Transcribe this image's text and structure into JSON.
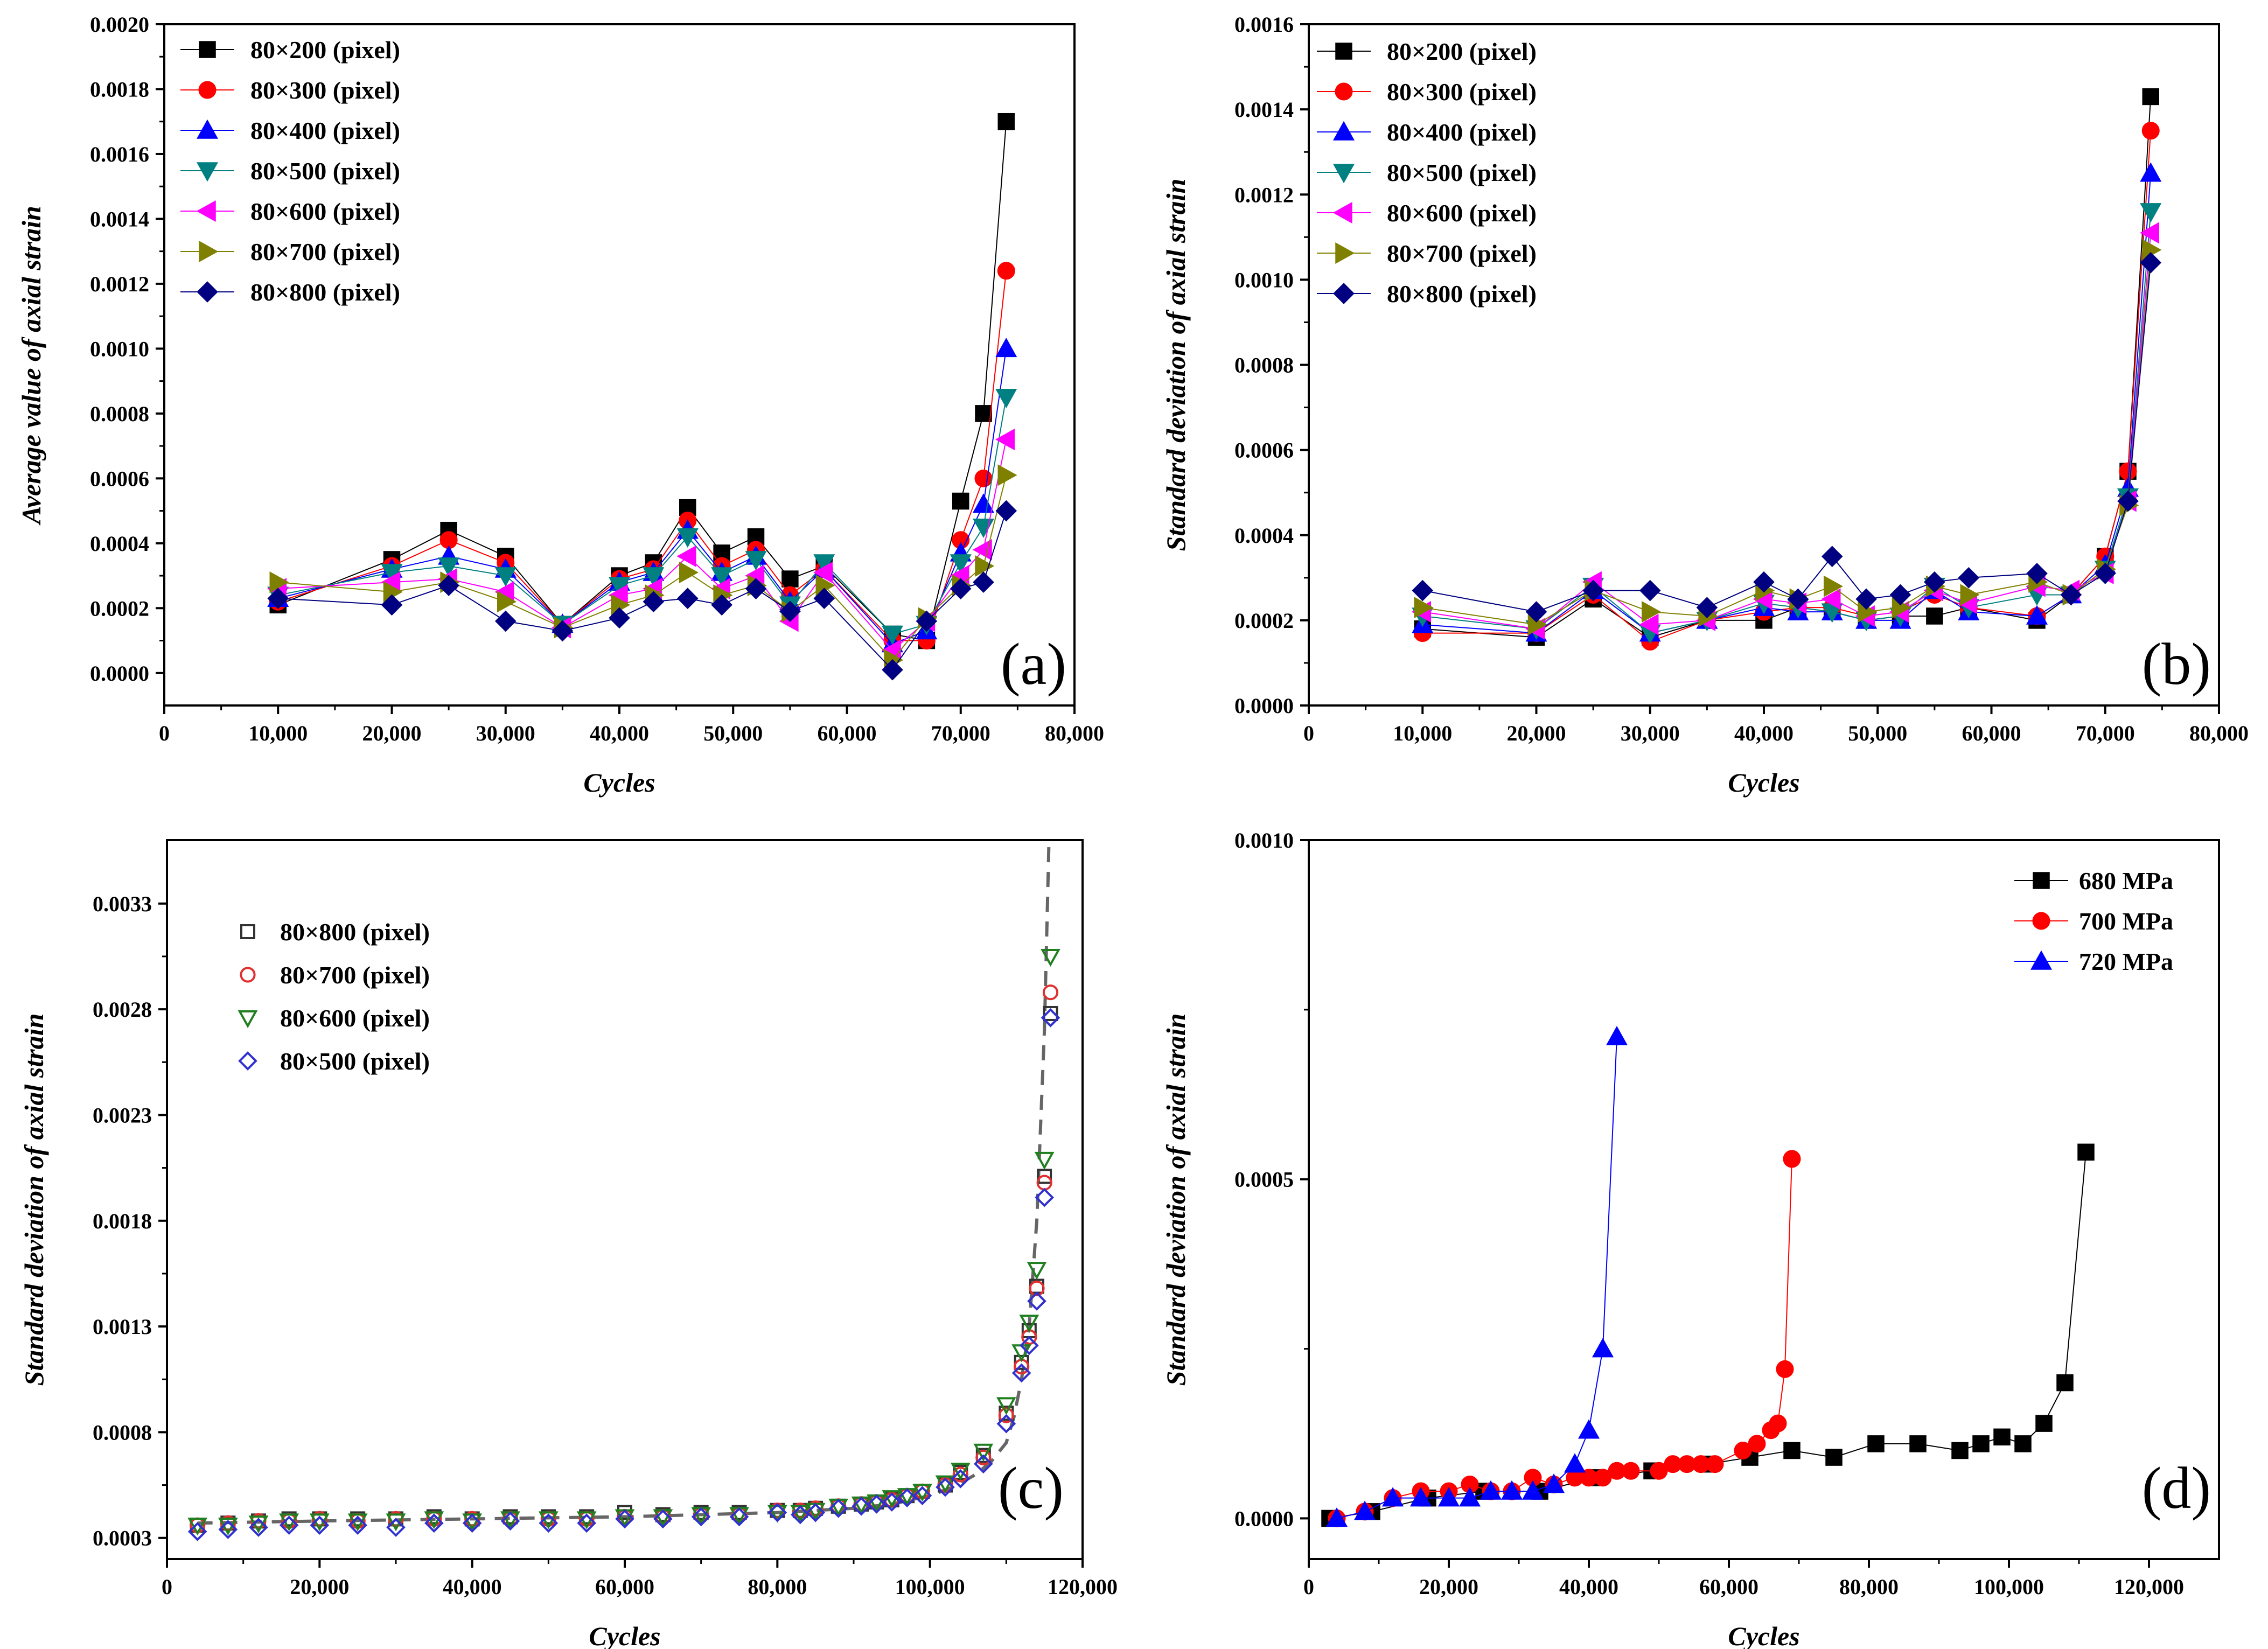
{
  "chart_data": [
    {
      "type": "line",
      "panel_label": "(a)",
      "xlabel": "Cycles",
      "ylabel": "Average value of axial strain",
      "xlim": [
        0,
        80000
      ],
      "ylim": [
        -0.0001,
        0.002
      ],
      "x_ticks": [
        0,
        10000,
        20000,
        30000,
        40000,
        50000,
        60000,
        70000,
        80000
      ],
      "x_tick_labels": [
        "0",
        "10,000",
        "20,000",
        "30,000",
        "40,000",
        "50,000",
        "60,000",
        "70,000",
        "80,000"
      ],
      "y_ticks": [
        0,
        0.0002,
        0.0004,
        0.0006,
        0.0008,
        0.001,
        0.0012,
        0.0014,
        0.0016,
        0.0018,
        0.002
      ],
      "y_tick_labels": [
        "0.0000",
        "0.0002",
        "0.0004",
        "0.0006",
        "0.0008",
        "0.0010",
        "0.0012",
        "0.0014",
        "0.0016",
        "0.0018",
        "0.0020"
      ],
      "legend_position": "top-left",
      "x": [
        10000,
        20000,
        25000,
        30000,
        35000,
        40000,
        43000,
        46000,
        49000,
        52000,
        55000,
        58000,
        64000,
        67000,
        70000,
        72000,
        74000
      ],
      "series": [
        {
          "name": "80×200 (pixel)",
          "color": "#000000",
          "marker": "square",
          "values": [
            0.00021,
            0.00035,
            0.00044,
            0.00036,
            0.00015,
            0.0003,
            0.00034,
            0.00051,
            0.00037,
            0.00042,
            0.00029,
            0.00033,
            0.00012,
            0.0001,
            0.00053,
            0.0008,
            0.0017
          ]
        },
        {
          "name": "80×300 (pixel)",
          "color": "#ff0000",
          "marker": "circle",
          "values": [
            0.00022,
            0.00033,
            0.00041,
            0.00034,
            0.00015,
            0.00029,
            0.00032,
            0.00047,
            0.00033,
            0.00038,
            0.00024,
            0.00032,
            0.0001,
            0.0001,
            0.00041,
            0.0006,
            0.00124
          ]
        },
        {
          "name": "80×400 (pixel)",
          "color": "#0000ff",
          "marker": "triangle-up",
          "values": [
            0.00023,
            0.00032,
            0.00036,
            0.00032,
            0.00015,
            0.00028,
            0.00031,
            0.00044,
            0.00031,
            0.00036,
            0.00022,
            0.00032,
            9e-05,
            0.00013,
            0.00037,
            0.00052,
            0.001
          ]
        },
        {
          "name": "80×500 (pixel)",
          "color": "#008080",
          "marker": "triangle-down",
          "values": [
            0.00024,
            0.00031,
            0.00033,
            0.0003,
            0.00015,
            0.00027,
            0.0003,
            0.00042,
            0.0003,
            0.00035,
            0.00021,
            0.00034,
            0.00012,
            0.00015,
            0.00034,
            0.00045,
            0.00085
          ]
        },
        {
          "name": "80×600 (pixel)",
          "color": "#ff00ff",
          "marker": "triangle-left",
          "values": [
            0.00026,
            0.00028,
            0.00029,
            0.00025,
            0.00014,
            0.00024,
            0.00026,
            0.00036,
            0.00026,
            0.0003,
            0.00016,
            0.00031,
            7e-05,
            0.00016,
            0.0003,
            0.00038,
            0.00072
          ]
        },
        {
          "name": "80×700 (pixel)",
          "color": "#808000",
          "marker": "triangle-right",
          "values": [
            0.00028,
            0.00025,
            0.00028,
            0.00022,
            0.00014,
            0.00021,
            0.00024,
            0.00031,
            0.00024,
            0.00027,
            0.00019,
            0.00027,
            4e-05,
            0.00017,
            0.00027,
            0.00033,
            0.00061
          ]
        },
        {
          "name": "80×800 (pixel)",
          "color": "#000080",
          "marker": "diamond",
          "values": [
            0.00023,
            0.00021,
            0.00027,
            0.00016,
            0.00013,
            0.00017,
            0.00022,
            0.00023,
            0.00021,
            0.00026,
            0.00019,
            0.00023,
            1e-05,
            0.00016,
            0.00026,
            0.00028,
            0.0005
          ]
        }
      ]
    },
    {
      "type": "line",
      "panel_label": "(b)",
      "xlabel": "Cycles",
      "ylabel": "Standard deviation of axial strain",
      "xlim": [
        0,
        80000
      ],
      "ylim": [
        0,
        0.0016
      ],
      "x_ticks": [
        0,
        10000,
        20000,
        30000,
        40000,
        50000,
        60000,
        70000,
        80000
      ],
      "x_tick_labels": [
        "0",
        "10,000",
        "20,000",
        "30,000",
        "40,000",
        "50,000",
        "60,000",
        "70,000",
        "80,000"
      ],
      "y_ticks": [
        0,
        0.0002,
        0.0004,
        0.0006,
        0.0008,
        0.001,
        0.0012,
        0.0014,
        0.0016
      ],
      "y_tick_labels": [
        "0.0000",
        "0.0002",
        "0.0004",
        "0.0006",
        "0.0008",
        "0.0010",
        "0.0012",
        "0.0014",
        "0.0016"
      ],
      "legend_position": "top-left",
      "x": [
        10000,
        20000,
        25000,
        30000,
        35000,
        40000,
        43000,
        46000,
        49000,
        52000,
        55000,
        58000,
        64000,
        67000,
        70000,
        72000,
        74000
      ],
      "series": [
        {
          "name": "80×200 (pixel)",
          "color": "#000000",
          "marker": "square",
          "values": [
            0.00018,
            0.00016,
            0.00025,
            0.00016,
            0.0002,
            0.0002,
            0.00023,
            0.00022,
            0.0002,
            0.00021,
            0.00021,
            0.00023,
            0.0002,
            0.00026,
            0.00035,
            0.00055,
            0.00143
          ]
        },
        {
          "name": "80×300 (pixel)",
          "color": "#ff0000",
          "marker": "circle",
          "values": [
            0.00017,
            0.00017,
            0.00026,
            0.00015,
            0.0002,
            0.00022,
            0.00023,
            0.00023,
            0.00021,
            0.00022,
            0.00026,
            0.00023,
            0.00021,
            0.00026,
            0.00035,
            0.00055,
            0.00135
          ]
        },
        {
          "name": "80×400 (pixel)",
          "color": "#0000ff",
          "marker": "triangle-up",
          "values": [
            0.00019,
            0.00017,
            0.00027,
            0.00017,
            0.0002,
            0.00023,
            0.00022,
            0.00022,
            0.0002,
            0.0002,
            0.00027,
            0.00022,
            0.00021,
            0.00026,
            0.00033,
            0.00051,
            0.00125
          ]
        },
        {
          "name": "80×500 (pixel)",
          "color": "#008080",
          "marker": "triangle-down",
          "values": [
            0.00021,
            0.00018,
            0.00028,
            0.00017,
            0.0002,
            0.00024,
            0.00023,
            0.00022,
            0.0002,
            0.00021,
            0.00028,
            0.00023,
            0.00026,
            0.00026,
            0.00032,
            0.00049,
            0.00116
          ]
        },
        {
          "name": "80×600 (pixel)",
          "color": "#ff00ff",
          "marker": "triangle-left",
          "values": [
            0.00022,
            0.00018,
            0.00029,
            0.00019,
            0.0002,
            0.00025,
            0.00024,
            0.00025,
            0.00021,
            0.00022,
            0.00027,
            0.00024,
            0.00028,
            0.00027,
            0.00031,
            0.00048,
            0.00111
          ]
        },
        {
          "name": "80×700 (pixel)",
          "color": "#808000",
          "marker": "triangle-right",
          "values": [
            0.00023,
            0.00019,
            0.00027,
            0.00022,
            0.00021,
            0.00027,
            0.00025,
            0.00028,
            0.00022,
            0.00023,
            0.00028,
            0.00026,
            0.00029,
            0.00026,
            0.00032,
            0.00047,
            0.00107
          ]
        },
        {
          "name": "80×800 (pixel)",
          "color": "#000080",
          "marker": "diamond",
          "values": [
            0.00027,
            0.00022,
            0.00027,
            0.00027,
            0.00023,
            0.00029,
            0.00025,
            0.00035,
            0.00025,
            0.00026,
            0.00029,
            0.0003,
            0.00031,
            0.00026,
            0.00031,
            0.00048,
            0.00104
          ]
        }
      ]
    },
    {
      "type": "scatter",
      "panel_label": "(c)",
      "xlabel": "Cycles",
      "ylabel": "Standard deviation of axial strain",
      "xlim": [
        0,
        120000
      ],
      "ylim": [
        0.0002,
        0.0036
      ],
      "x_ticks": [
        0,
        20000,
        40000,
        60000,
        80000,
        100000,
        120000
      ],
      "x_tick_labels": [
        "0",
        "20,000",
        "40,000",
        "60,000",
        "80,000",
        "100,000",
        "120,000"
      ],
      "y_ticks": [
        0.0003,
        0.0008,
        0.0013,
        0.0018,
        0.0023,
        0.0028,
        0.0033
      ],
      "y_tick_labels": [
        "0.0003",
        "0.0008",
        "0.0013",
        "0.0018",
        "0.0023",
        "0.0028",
        "0.0033"
      ],
      "legend_position": "top-left",
      "fit_curve": {
        "style": "dashed",
        "color": "#666666",
        "x": [
          4000,
          20000,
          40000,
          60000,
          80000,
          90000,
          95000,
          100000,
          103000,
          106000,
          108000,
          110000,
          111000,
          112000,
          113000,
          114000,
          115000,
          115600
        ],
        "y": [
          0.00037,
          0.00038,
          0.00039,
          0.0004,
          0.00042,
          0.00044,
          0.00046,
          0.0005,
          0.00054,
          0.0006,
          0.00066,
          0.00075,
          0.00087,
          0.00105,
          0.0013,
          0.0018,
          0.0027,
          0.0036
        ]
      },
      "x": [
        4000,
        8000,
        12000,
        16000,
        20000,
        25000,
        30000,
        35000,
        40000,
        45000,
        50000,
        55000,
        60000,
        65000,
        70000,
        75000,
        80000,
        83000,
        85000,
        88000,
        91000,
        93000,
        95000,
        97000,
        99000,
        102000,
        104000,
        107000,
        110000,
        112000,
        113000,
        114000,
        115000,
        115800
      ],
      "series": [
        {
          "name": "80×800 (pixel)",
          "color": "#333333",
          "marker": "square-open",
          "values": [
            0.00036,
            0.00037,
            0.00038,
            0.00039,
            0.00039,
            0.00039,
            0.00039,
            0.0004,
            0.00039,
            0.0004,
            0.0004,
            0.0004,
            0.00042,
            0.00041,
            0.00042,
            0.00042,
            0.00043,
            0.00043,
            0.00044,
            0.00045,
            0.00046,
            0.00047,
            0.00048,
            0.0005,
            0.00052,
            0.00055,
            0.00061,
            0.00069,
            0.00089,
            0.00113,
            0.00128,
            0.00149,
            0.00201,
            0.00278
          ]
        },
        {
          "name": "80×700 (pixel)",
          "color": "#e03030",
          "marker": "circle-open",
          "values": [
            0.00036,
            0.00037,
            0.00038,
            0.00038,
            0.00039,
            0.00038,
            0.00039,
            0.00039,
            0.00039,
            0.00039,
            0.00039,
            0.00039,
            0.0004,
            0.0004,
            0.00041,
            0.00041,
            0.00043,
            0.00043,
            0.00044,
            0.00045,
            0.00046,
            0.00047,
            0.00048,
            0.0005,
            0.00052,
            0.00055,
            0.0006,
            0.00068,
            0.00088,
            0.00111,
            0.00125,
            0.00148,
            0.00198,
            0.00288
          ]
        },
        {
          "name": "80×600 (pixel)",
          "color": "#208020",
          "marker": "triangle-down-open",
          "values": [
            0.00036,
            0.00036,
            0.00037,
            0.00038,
            0.00038,
            0.00038,
            0.00038,
            0.00039,
            0.00038,
            0.00039,
            0.00039,
            0.00039,
            0.0004,
            0.0004,
            0.00041,
            0.00041,
            0.00042,
            0.00042,
            0.00043,
            0.00045,
            0.00046,
            0.00047,
            0.00049,
            0.0005,
            0.00052,
            0.00056,
            0.00062,
            0.00071,
            0.00093,
            0.00118,
            0.00132,
            0.00157,
            0.00209,
            0.00305
          ]
        },
        {
          "name": "80×500 (pixel)",
          "color": "#3030d0",
          "marker": "diamond-open",
          "values": [
            0.00033,
            0.00034,
            0.00035,
            0.00036,
            0.00036,
            0.00036,
            0.00035,
            0.00037,
            0.00037,
            0.00038,
            0.00037,
            0.00037,
            0.00039,
            0.00039,
            0.0004,
            0.0004,
            0.00042,
            0.00041,
            0.00042,
            0.00044,
            0.00045,
            0.00046,
            0.00047,
            0.00049,
            0.0005,
            0.00054,
            0.00058,
            0.00065,
            0.00084,
            0.00108,
            0.00121,
            0.00142,
            0.00191,
            0.00276
          ]
        }
      ]
    },
    {
      "type": "line",
      "panel_label": "(d)",
      "xlabel": "Cycles",
      "ylabel": "Standard deviation of axial strain",
      "xlim": [
        0,
        130000
      ],
      "ylim": [
        -6e-05,
        0.001
      ],
      "x_ticks": [
        0,
        20000,
        40000,
        60000,
        80000,
        100000,
        120000
      ],
      "x_tick_labels": [
        "0",
        "20,000",
        "40,000",
        "60,000",
        "80,000",
        "100,000",
        "120,000"
      ],
      "y_ticks": [
        0,
        0.0005,
        0.001
      ],
      "y_tick_labels": [
        "0.0000",
        "0.0005",
        "0.0010"
      ],
      "legend_position": "top-right",
      "series": [
        {
          "name": "680 MPa",
          "color": "#000000",
          "marker": "square",
          "x": [
            3000,
            9000,
            17000,
            25000,
            33000,
            41000,
            49000,
            57000,
            63000,
            69000,
            75000,
            81000,
            87000,
            93000,
            96000,
            99000,
            102000,
            105000,
            108000,
            111000
          ],
          "values": [
            0.0,
            1e-05,
            3e-05,
            4e-05,
            4e-05,
            6e-05,
            7e-05,
            8e-05,
            9e-05,
            0.0001,
            9e-05,
            0.00011,
            0.00011,
            0.0001,
            0.00011,
            0.00012,
            0.00011,
            0.00014,
            0.0002,
            0.00054
          ]
        },
        {
          "name": "700 MPa",
          "color": "#ff0000",
          "marker": "circle",
          "x": [
            4000,
            8000,
            12000,
            16000,
            20000,
            23000,
            26000,
            29000,
            32000,
            35000,
            38000,
            40000,
            42000,
            44000,
            46000,
            50000,
            52000,
            54000,
            56000,
            58000,
            62000,
            64000,
            66000,
            67000,
            68000,
            69000
          ],
          "values": [
            0.0,
            1e-05,
            3e-05,
            4e-05,
            4e-05,
            5e-05,
            4e-05,
            4e-05,
            6e-05,
            5e-05,
            6e-05,
            6e-05,
            6e-05,
            7e-05,
            7e-05,
            7e-05,
            8e-05,
            8e-05,
            8e-05,
            8e-05,
            0.0001,
            0.00011,
            0.00013,
            0.00014,
            0.00022,
            0.00053
          ]
        },
        {
          "name": "720 MPa",
          "color": "#0000ff",
          "marker": "triangle-up",
          "x": [
            4000,
            8000,
            12000,
            16000,
            20000,
            23000,
            26000,
            29000,
            32000,
            35000,
            38000,
            40000,
            42000,
            44000
          ],
          "values": [
            0.0,
            1e-05,
            3e-05,
            3e-05,
            3e-05,
            3e-05,
            4e-05,
            4e-05,
            4e-05,
            5e-05,
            8e-05,
            0.00013,
            0.00025,
            0.00071
          ]
        }
      ]
    }
  ]
}
